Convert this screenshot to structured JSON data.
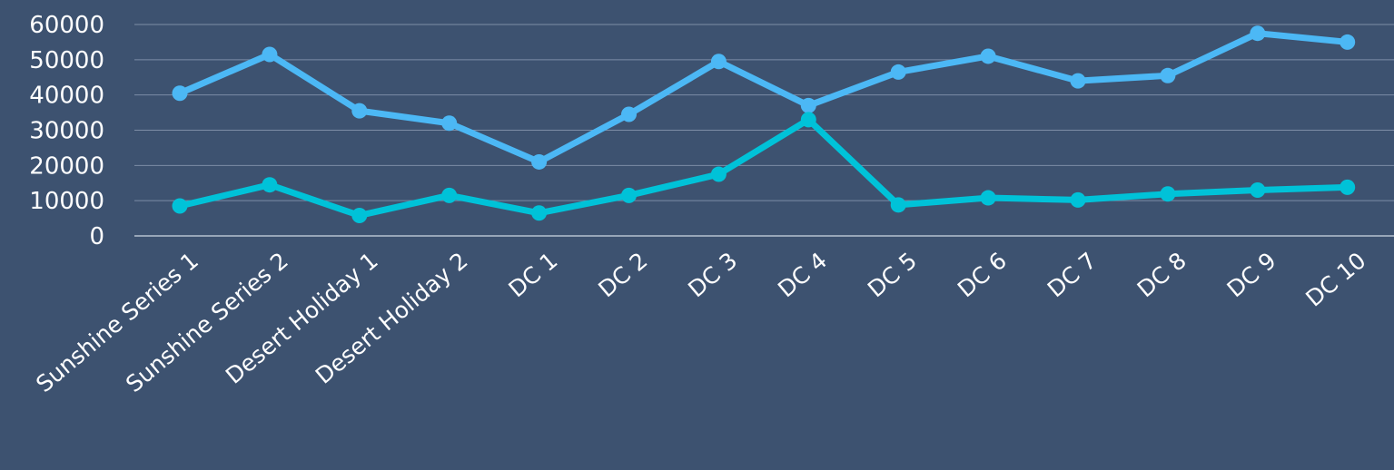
{
  "chart_data": {
    "type": "line",
    "title": "",
    "xlabel": "",
    "ylabel": "",
    "ylim": [
      0,
      60000
    ],
    "yticks": [
      0,
      10000,
      20000,
      30000,
      40000,
      50000,
      60000
    ],
    "ytick_labels": [
      "0",
      "10000",
      "20000",
      "30000",
      "40000",
      "50000",
      "60000"
    ],
    "grid": true,
    "legend": "none",
    "categories": [
      "Sunshine Series 1",
      "Sunshine Series 2",
      "Desert Holiday 1",
      "Desert Holiday 2",
      "DC 1",
      "DC 2",
      "DC 3",
      "DC 4",
      "DC 5",
      "DC 6",
      "DC 7",
      "DC 8",
      "DC 9",
      "DC 10"
    ],
    "series": [
      {
        "color": "#4cb8f5",
        "values": [
          40500,
          51500,
          35500,
          32000,
          21000,
          34500,
          49500,
          37000,
          46500,
          51000,
          44000,
          45500,
          57500,
          55000
        ]
      },
      {
        "color": "#00c2d8",
        "values": [
          8500,
          14500,
          5800,
          11500,
          6500,
          11500,
          17500,
          33000,
          8800,
          10800,
          10200,
          11900,
          13000,
          13800
        ]
      }
    ]
  }
}
